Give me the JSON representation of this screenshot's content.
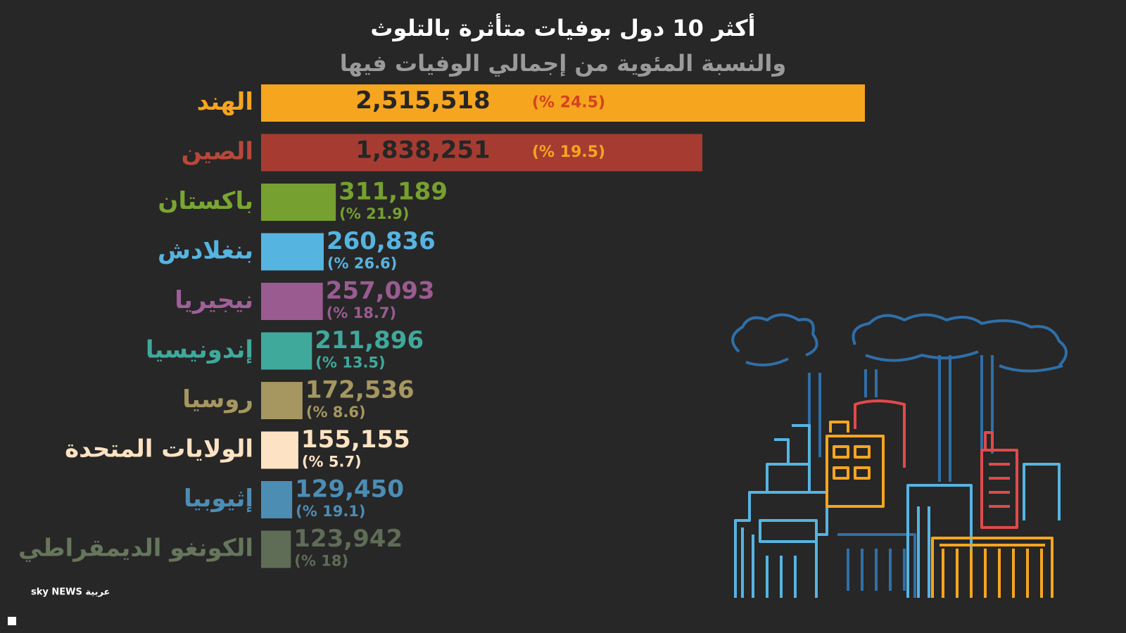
{
  "chart_data": {
    "type": "bar",
    "orientation": "horizontal",
    "title": "أكثر 10 دول بوفيات متأثرة بالتلوث",
    "subtitle": "والنسبة المئوية من إجمالي الوفيات فيها",
    "categories": [
      "الهند",
      "الصين",
      "باكستان",
      "بنغلادش",
      "نيجيريا",
      "إندونيسيا",
      "روسيا",
      "الولايات المتحدة",
      "إثيوبيا",
      "الكونغو الديمقراطي"
    ],
    "values": [
      2515518,
      1838251,
      311189,
      260836,
      257093,
      211896,
      172536,
      155155,
      129450,
      123942
    ],
    "value_labels": [
      "2,515,518",
      "1,838,251",
      "311,189",
      "260,836",
      "257,093",
      "211,896",
      "172,536",
      "155,155",
      "129,450",
      "123,942"
    ],
    "share_labels": [
      "(% 24.5)",
      "(% 19.5)",
      "(% 21.9)",
      "(% 26.6)",
      "(% 18.7)",
      "(% 13.5)",
      "(% 8.6)",
      "(% 5.7)",
      "(% 19.1)",
      "(% 18)"
    ],
    "colors": [
      "#f6a51f",
      "#a63c31",
      "#76a02f",
      "#56b4e1",
      "#9a5b91",
      "#3fa99c",
      "#a69761",
      "#fde3c3",
      "#4c8db4",
      "#5f6c56"
    ],
    "label_colors": [
      "#f6a51f",
      "#b8473a",
      "#7aa632",
      "#56b4e1",
      "#a0609a",
      "#3fa99c",
      "#a69761",
      "#fde3c3",
      "#4c8db4",
      "#66765c"
    ],
    "logo": "sky NEWS عربية"
  }
}
